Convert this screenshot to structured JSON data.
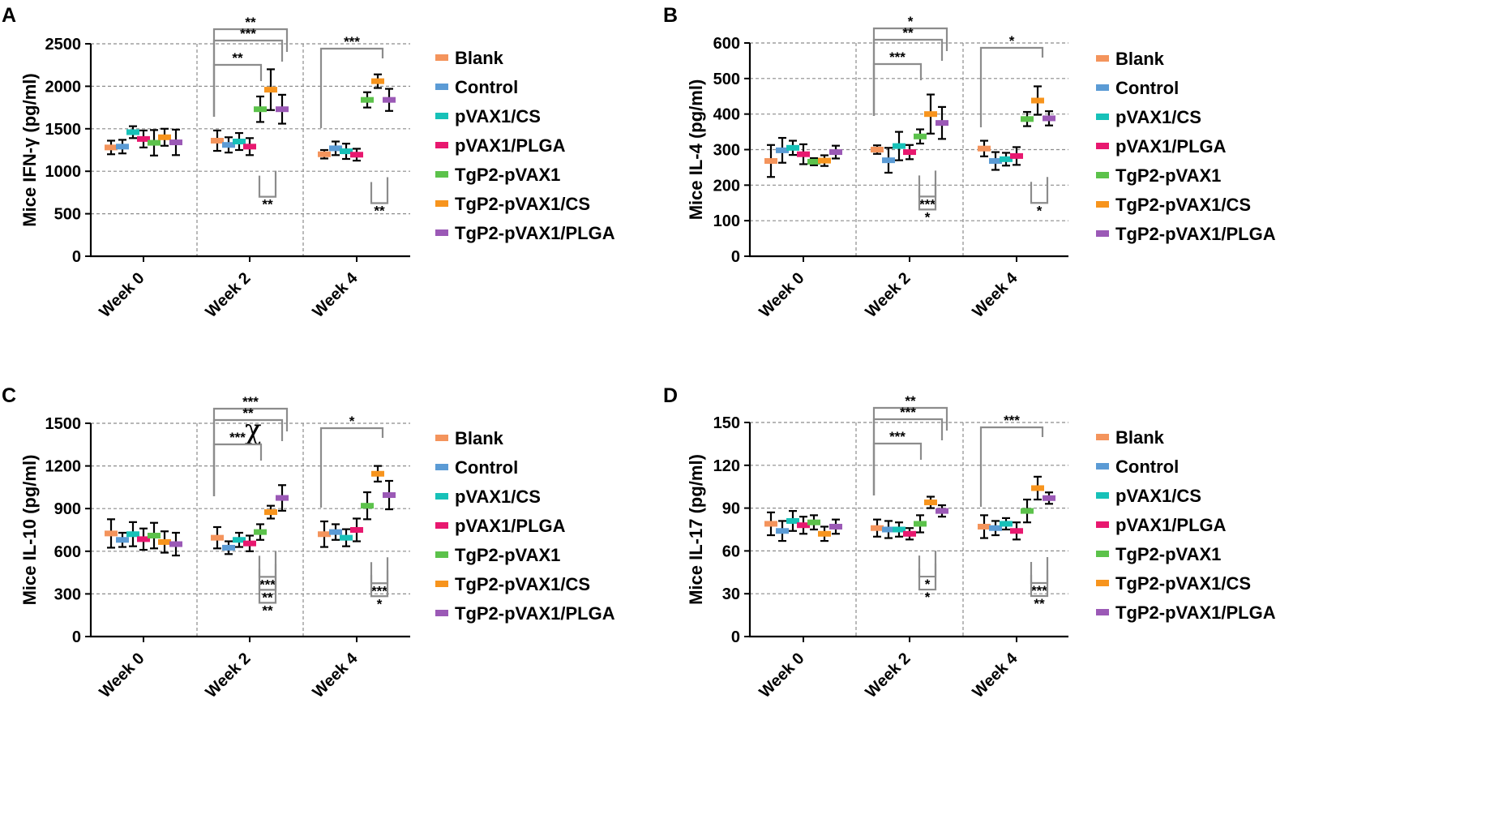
{
  "legend": [
    "Blank",
    "Control",
    "pVAX1/CS",
    "pVAX1/PLGA",
    "TgP2-pVAX1",
    "TgP2-pVAX1/CS",
    "TgP2-pVAX1/PLGA"
  ],
  "colors": {
    "Blank": "#f4945c",
    "Control": "#5b9bd5",
    "pVAX1/CS": "#17c1b8",
    "pVAX1/PLGA": "#e8186f",
    "TgP2-pVAX1": "#5cc24b",
    "TgP2-pVAX1/CS": "#f7941d",
    "TgP2-pVAX1/PLGA": "#9b59b6",
    "axis": "#000000",
    "grid": "#8c8c8c",
    "bracket": "#8c8c8c"
  },
  "stray_symbol": "χ",
  "chart_data": [
    {
      "panel": "A",
      "type": "scatter",
      "ylabel": "Mice IFN-γ (pg/ml)",
      "ylim": [
        0,
        2500
      ],
      "yticks": [
        0,
        500,
        1000,
        1500,
        2000,
        2500
      ],
      "categories": [
        "Week 0",
        "Week 2",
        "Week 4"
      ],
      "series": [
        {
          "name": "Blank",
          "mean": [
            1280,
            1360,
            1200
          ],
          "err": [
            80,
            120,
            50
          ]
        },
        {
          "name": "Control",
          "mean": [
            1290,
            1310,
            1270
          ],
          "err": [
            80,
            90,
            80
          ]
        },
        {
          "name": "pVAX1/CS",
          "mean": [
            1460,
            1350,
            1235
          ],
          "err": [
            70,
            100,
            90
          ]
        },
        {
          "name": "pVAX1/PLGA",
          "mean": [
            1380,
            1290,
            1195
          ],
          "err": [
            100,
            100,
            70
          ]
        },
        {
          "name": "TgP2-pVAX1",
          "mean": [
            1335,
            1730,
            1840
          ],
          "err": [
            150,
            150,
            90
          ]
        },
        {
          "name": "TgP2-pVAX1/CS",
          "mean": [
            1400,
            1960,
            2060
          ],
          "err": [
            100,
            240,
            80
          ]
        },
        {
          "name": "TgP2-pVAX1/PLGA",
          "mean": [
            1340,
            1730,
            1840
          ],
          "err": [
            150,
            170,
            130
          ]
        }
      ],
      "significance": [
        "**",
        "***",
        "**",
        "***",
        "**",
        "**"
      ]
    },
    {
      "panel": "B",
      "type": "scatter",
      "ylabel": "Mice IL-4 (pg/ml)",
      "ylim": [
        0,
        600
      ],
      "yticks": [
        0,
        100,
        200,
        300,
        400,
        500,
        600
      ],
      "categories": [
        "Week 0",
        "Week 2",
        "Week 4"
      ],
      "series": [
        {
          "name": "Blank",
          "mean": [
            268,
            300,
            303
          ],
          "err": [
            45,
            12,
            22
          ]
        },
        {
          "name": "Control",
          "mean": [
            298,
            270,
            268
          ],
          "err": [
            35,
            35,
            25
          ]
        },
        {
          "name": "pVAX1/CS",
          "mean": [
            305,
            310,
            273
          ],
          "err": [
            20,
            40,
            18
          ]
        },
        {
          "name": "pVAX1/PLGA",
          "mean": [
            287,
            293,
            282
          ],
          "err": [
            28,
            20,
            25
          ]
        },
        {
          "name": "TgP2-pVAX1",
          "mean": [
            266,
            337,
            386
          ],
          "err": [
            10,
            20,
            20
          ]
        },
        {
          "name": "TgP2-pVAX1/CS",
          "mean": [
            269,
            400,
            438
          ],
          "err": [
            15,
            55,
            40
          ]
        },
        {
          "name": "TgP2-pVAX1/PLGA",
          "mean": [
            293,
            375,
            388
          ],
          "err": [
            18,
            45,
            20
          ]
        }
      ],
      "significance": [
        "*",
        "**",
        "***",
        "*",
        "***",
        "*",
        "*"
      ]
    },
    {
      "panel": "C",
      "type": "scatter",
      "ylabel": "Mice IL-10 (pg/ml)",
      "ylim": [
        0,
        1500
      ],
      "yticks": [
        0,
        300,
        600,
        900,
        1200,
        1500
      ],
      "categories": [
        "Week 0",
        "Week 2",
        "Week 4"
      ],
      "series": [
        {
          "name": "Blank",
          "mean": [
            725,
            695,
            720
          ],
          "err": [
            100,
            75,
            90
          ]
        },
        {
          "name": "Control",
          "mean": [
            680,
            625,
            735
          ],
          "err": [
            50,
            45,
            55
          ]
        },
        {
          "name": "pVAX1/CS",
          "mean": [
            720,
            680,
            695
          ],
          "err": [
            85,
            50,
            60
          ]
        },
        {
          "name": "pVAX1/PLGA",
          "mean": [
            685,
            655,
            750
          ],
          "err": [
            75,
            55,
            80
          ]
        },
        {
          "name": "TgP2-pVAX1",
          "mean": [
            710,
            735,
            920
          ],
          "err": [
            90,
            55,
            95
          ]
        },
        {
          "name": "TgP2-pVAX1/CS",
          "mean": [
            665,
            875,
            1145
          ],
          "err": [
            75,
            45,
            55
          ]
        },
        {
          "name": "TgP2-pVAX1/PLGA",
          "mean": [
            650,
            975,
            995
          ],
          "err": [
            80,
            90,
            100
          ]
        }
      ],
      "significance": [
        "***",
        "**",
        "***",
        "*",
        "***",
        "***",
        "**",
        "*",
        "**"
      ]
    },
    {
      "panel": "D",
      "type": "scatter",
      "ylabel": "Mice IL-17 (pg/ml)",
      "ylim": [
        0,
        150
      ],
      "yticks": [
        0,
        30,
        60,
        90,
        120,
        150
      ],
      "categories": [
        "Week 0",
        "Week 2",
        "Week 4"
      ],
      "series": [
        {
          "name": "Blank",
          "mean": [
            79,
            76,
            77
          ],
          "err": [
            8,
            6,
            8
          ]
        },
        {
          "name": "Control",
          "mean": [
            74,
            75,
            76
          ],
          "err": [
            7,
            6,
            5
          ]
        },
        {
          "name": "pVAX1/CS",
          "mean": [
            81,
            75,
            79
          ],
          "err": [
            7,
            5,
            4
          ]
        },
        {
          "name": "pVAX1/PLGA",
          "mean": [
            78,
            72,
            74
          ],
          "err": [
            6,
            4,
            6
          ]
        },
        {
          "name": "TgP2-pVAX1",
          "mean": [
            80,
            79,
            88
          ],
          "err": [
            5,
            6,
            8
          ]
        },
        {
          "name": "TgP2-pVAX1/CS",
          "mean": [
            72,
            94,
            104
          ],
          "err": [
            5,
            4,
            8
          ]
        },
        {
          "name": "TgP2-pVAX1/PLGA",
          "mean": [
            77,
            88,
            97
          ],
          "err": [
            5,
            4,
            4
          ]
        }
      ],
      "significance": [
        "**",
        "***",
        "***",
        "***",
        "*",
        "***",
        "*",
        "**"
      ]
    }
  ]
}
